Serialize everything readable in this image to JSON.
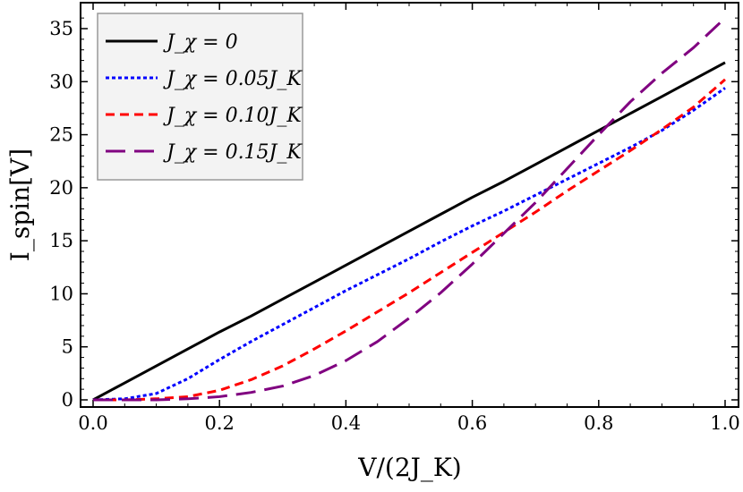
{
  "chart_data": {
    "type": "line",
    "xlabel": "V/(2J_K)",
    "ylabel": "I_spin[V]",
    "xlim": [
      0.0,
      1.0
    ],
    "ylim": [
      0,
      36
    ],
    "x_ticks": [
      "0.0",
      "0.2",
      "0.4",
      "0.6",
      "0.8",
      "1.0"
    ],
    "y_ticks": [
      "0",
      "5",
      "10",
      "15",
      "20",
      "25",
      "30",
      "35"
    ],
    "legend_position": "top-left",
    "grid": false,
    "x": [
      0.0,
      0.05,
      0.1,
      0.15,
      0.2,
      0.25,
      0.3,
      0.35,
      0.4,
      0.45,
      0.5,
      0.55,
      0.6,
      0.65,
      0.7,
      0.75,
      0.8,
      0.85,
      0.9,
      0.95,
      1.0
    ],
    "series": [
      {
        "name": "J_χ = 0",
        "color": "#000000",
        "dash": "solid",
        "values": [
          0.0,
          1.6,
          3.2,
          4.8,
          6.4,
          7.9,
          9.5,
          11.1,
          12.7,
          14.3,
          15.9,
          17.5,
          19.1,
          20.6,
          22.2,
          23.8,
          25.4,
          27.0,
          28.6,
          30.2,
          31.8
        ]
      },
      {
        "name": "J_χ = 0.05J_K",
        "color": "#0000ff",
        "dash": "dotted",
        "values": [
          0.0,
          0.1,
          0.6,
          2.0,
          3.8,
          5.5,
          7.1,
          8.7,
          10.3,
          11.8,
          13.3,
          14.9,
          16.4,
          17.8,
          19.3,
          20.8,
          22.3,
          23.8,
          25.4,
          27.3,
          29.4
        ]
      },
      {
        "name": "J_χ = 0.10J_K",
        "color": "#ff0000",
        "dash": "short-dash",
        "values": [
          0.0,
          0.0,
          0.1,
          0.3,
          0.9,
          1.9,
          3.2,
          4.8,
          6.5,
          8.3,
          10.1,
          12.0,
          13.9,
          15.8,
          17.7,
          19.7,
          21.6,
          23.5,
          25.5,
          27.6,
          30.2
        ]
      },
      {
        "name": "J_χ = 0.15J_K",
        "color": "#800080",
        "dash": "long-dash",
        "values": [
          0.0,
          0.0,
          0.0,
          0.1,
          0.3,
          0.7,
          1.3,
          2.3,
          3.7,
          5.5,
          7.7,
          10.1,
          12.8,
          15.7,
          18.6,
          21.8,
          25.0,
          28.1,
          30.8,
          33.2,
          36.0
        ]
      }
    ]
  }
}
